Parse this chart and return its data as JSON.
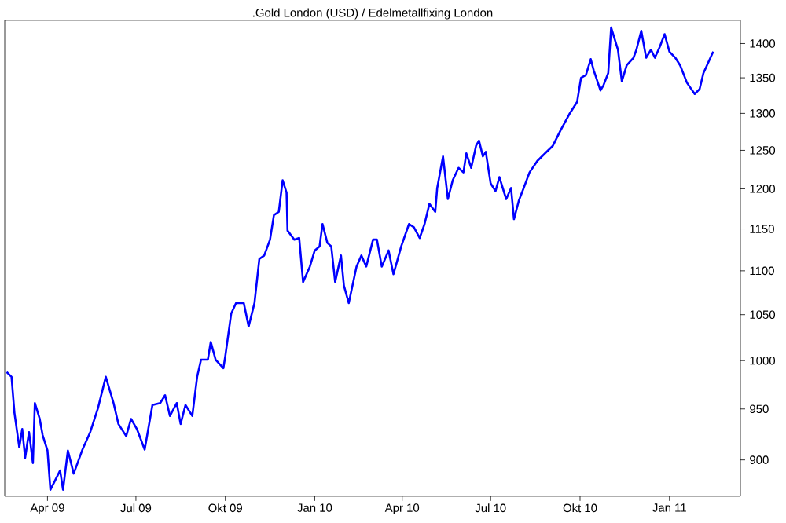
{
  "chart_data": {
    "type": "line",
    "title": ".Gold London (USD) / Edelmetallfixing London",
    "log": true,
    "color": "#0000ff",
    "x": [
      "2009-02-18",
      "2009-02-23",
      "2009-02-26",
      "2009-03-03",
      "2009-03-06",
      "2009-03-09",
      "2009-03-13",
      "2009-03-17",
      "2009-03-19",
      "2009-03-24",
      "2009-03-27",
      "2009-04-01",
      "2009-04-04",
      "2009-04-14",
      "2009-04-17",
      "2009-04-22",
      "2009-04-28",
      "2009-05-07",
      "2009-05-15",
      "2009-05-23",
      "2009-05-31",
      "2009-06-08",
      "2009-06-13",
      "2009-06-21",
      "2009-06-26",
      "2009-07-02",
      "2009-07-10",
      "2009-07-18",
      "2009-07-26",
      "2009-07-31",
      "2009-08-05",
      "2009-08-12",
      "2009-08-16",
      "2009-08-21",
      "2009-08-28",
      "2009-09-02",
      "2009-09-06",
      "2009-09-13",
      "2009-09-16",
      "2009-09-21",
      "2009-09-29",
      "2009-10-01",
      "2009-10-07",
      "2009-10-12",
      "2009-10-20",
      "2009-10-25",
      "2009-10-31",
      "2009-11-05",
      "2009-11-10",
      "2009-11-16",
      "2009-11-20",
      "2009-11-25",
      "2009-11-29",
      "2009-12-03",
      "2009-12-04",
      "2009-12-11",
      "2009-12-16",
      "2009-12-20",
      "2009-12-27",
      "2010-01-01",
      "2010-01-06",
      "2010-01-09",
      "2010-01-14",
      "2010-01-18",
      "2010-01-22",
      "2010-01-28",
      "2010-01-31",
      "2010-02-05",
      "2010-02-13",
      "2010-02-18",
      "2010-02-23",
      "2010-03-02",
      "2010-03-06",
      "2010-03-11",
      "2010-03-18",
      "2010-03-23",
      "2010-03-31",
      "2010-04-08",
      "2010-04-13",
      "2010-04-19",
      "2010-04-24",
      "2010-04-29",
      "2010-05-05",
      "2010-05-07",
      "2010-05-13",
      "2010-05-18",
      "2010-05-23",
      "2010-05-29",
      "2010-06-03",
      "2010-06-06",
      "2010-06-11",
      "2010-06-16",
      "2010-06-19",
      "2010-06-23",
      "2010-06-26",
      "2010-07-01",
      "2010-07-06",
      "2010-07-10",
      "2010-07-17",
      "2010-07-22",
      "2010-07-25",
      "2010-07-30",
      "2010-08-04",
      "2010-08-10",
      "2010-08-18",
      "2010-08-26",
      "2010-09-03",
      "2010-09-11",
      "2010-09-20",
      "2010-09-28",
      "2010-10-02",
      "2010-10-07",
      "2010-10-12",
      "2010-10-15",
      "2010-10-22",
      "2010-10-25",
      "2010-10-30",
      "2010-11-02",
      "2010-11-09",
      "2010-11-13",
      "2010-11-18",
      "2010-11-25",
      "2010-11-28",
      "2010-12-03",
      "2010-12-08",
      "2010-12-13",
      "2010-12-17",
      "2010-12-22",
      "2010-12-27",
      "2011-01-01",
      "2011-01-07",
      "2011-01-12",
      "2011-01-19",
      "2011-01-27",
      "2011-02-01",
      "2011-02-05",
      "2011-02-15"
    ],
    "values": [
      988,
      983,
      946,
      912,
      930,
      902,
      927,
      897,
      956,
      940,
      924,
      909,
      872,
      890,
      872,
      909,
      887,
      910,
      927,
      951,
      983,
      956,
      935,
      923,
      940,
      930,
      910,
      954,
      956,
      964,
      943,
      956,
      935,
      954,
      943,
      983,
      1001,
      1001,
      1020,
      1001,
      992,
      1005,
      1051,
      1063,
      1063,
      1037,
      1063,
      1114,
      1118,
      1137,
      1167,
      1171,
      1211,
      1195,
      1148,
      1137,
      1139,
      1087,
      1105,
      1124,
      1129,
      1156,
      1133,
      1129,
      1087,
      1118,
      1083,
      1063,
      1105,
      1118,
      1105,
      1137,
      1137,
      1105,
      1124,
      1096,
      1129,
      1156,
      1152,
      1139,
      1156,
      1181,
      1171,
      1201,
      1242,
      1187,
      1211,
      1227,
      1221,
      1246,
      1227,
      1256,
      1263,
      1242,
      1248,
      1207,
      1197,
      1215,
      1187,
      1201,
      1162,
      1185,
      1201,
      1221,
      1236,
      1246,
      1256,
      1277,
      1299,
      1316,
      1350,
      1354,
      1377,
      1361,
      1332,
      1339,
      1357,
      1424,
      1391,
      1345,
      1368,
      1379,
      1391,
      1419,
      1379,
      1391,
      1379,
      1395,
      1414,
      1388,
      1379,
      1368,
      1343,
      1327,
      1334,
      1357,
      1388
    ],
    "xlim": [
      "2009-02-16",
      "2011-03-15"
    ],
    "ylim": [
      866,
      1435
    ],
    "xticks": [
      {
        "value": "2009-04-01",
        "label": "Apr 09"
      },
      {
        "value": "2009-07-01",
        "label": "Jul 09"
      },
      {
        "value": "2009-10-01",
        "label": "Okt 09"
      },
      {
        "value": "2010-01-01",
        "label": "Jan 10"
      },
      {
        "value": "2010-04-01",
        "label": "Apr 10"
      },
      {
        "value": "2010-07-01",
        "label": "Jul 10"
      },
      {
        "value": "2010-10-01",
        "label": "Okt 10"
      },
      {
        "value": "2011-01-01",
        "label": "Jan 11"
      }
    ],
    "yticks": [
      900,
      950,
      1000,
      1050,
      1100,
      1150,
      1200,
      1250,
      1300,
      1350,
      1400
    ]
  }
}
